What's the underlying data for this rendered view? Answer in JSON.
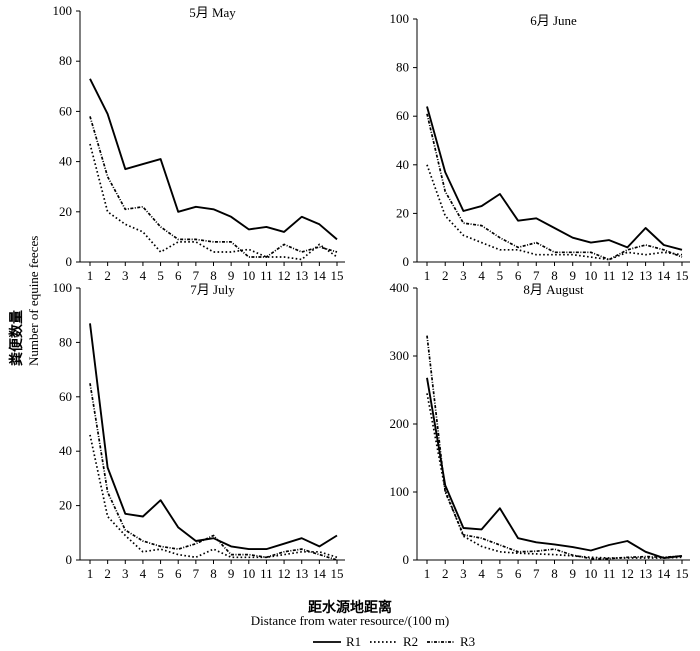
{
  "figure": {
    "ylabel_cn": "粪便数量",
    "ylabel_en": "Number of equine feeces",
    "xlabel_cn": "距水源地距离",
    "xlabel_en": "Distance from water resource/(100 m)"
  },
  "legend": [
    {
      "name": "R1",
      "style": "solid"
    },
    {
      "name": "R2",
      "style": "dotted"
    },
    {
      "name": "R3",
      "style": "dashdot"
    }
  ],
  "chart_data": [
    {
      "type": "line",
      "title": "5月 May",
      "x": [
        1,
        2,
        3,
        4,
        5,
        6,
        7,
        8,
        9,
        10,
        11,
        12,
        13,
        14,
        15
      ],
      "ylim": [
        0,
        100
      ],
      "yticks": [
        0,
        20,
        40,
        60,
        80,
        100
      ],
      "series": [
        {
          "name": "R1",
          "values": [
            73,
            59,
            37,
            39,
            41,
            20,
            22,
            21,
            18,
            13,
            14,
            12,
            18,
            15,
            9
          ]
        },
        {
          "name": "R2",
          "values": [
            47,
            20,
            15,
            12,
            4,
            8,
            8,
            4,
            4,
            5,
            2,
            2,
            1,
            7,
            2
          ]
        },
        {
          "name": "R3",
          "values": [
            58,
            34,
            21,
            22,
            14,
            9,
            9,
            8,
            8,
            2,
            2,
            7,
            4,
            6,
            4
          ]
        }
      ]
    },
    {
      "type": "line",
      "title": "6月 June",
      "x": [
        1,
        2,
        3,
        4,
        5,
        6,
        7,
        8,
        9,
        10,
        11,
        12,
        13,
        14,
        15
      ],
      "ylim": [
        0,
        100
      ],
      "yticks": [
        0,
        20,
        40,
        60,
        80,
        100
      ],
      "series": [
        {
          "name": "R1",
          "values": [
            64,
            37,
            21,
            23,
            28,
            17,
            18,
            14,
            10,
            8,
            9,
            6,
            14,
            7,
            5
          ]
        },
        {
          "name": "R2",
          "values": [
            40,
            19,
            11,
            8,
            5,
            5,
            3,
            3,
            3,
            2,
            1,
            4,
            3,
            4,
            3
          ]
        },
        {
          "name": "R3",
          "values": [
            61,
            29,
            16,
            15,
            10,
            6,
            8,
            4,
            4,
            4,
            1,
            5,
            7,
            5,
            2
          ]
        }
      ]
    },
    {
      "type": "line",
      "title": "7月 July",
      "x": [
        1,
        2,
        3,
        4,
        5,
        6,
        7,
        8,
        9,
        10,
        11,
        12,
        13,
        14,
        15
      ],
      "ylim": [
        0,
        100
      ],
      "yticks": [
        0,
        20,
        40,
        60,
        80,
        100
      ],
      "series": [
        {
          "name": "R1",
          "values": [
            87,
            34,
            17,
            16,
            22,
            12,
            7,
            8,
            5,
            4,
            4,
            6,
            8,
            5,
            9
          ]
        },
        {
          "name": "R2",
          "values": [
            46,
            16,
            9,
            3,
            4,
            2,
            1,
            4,
            1,
            1,
            1,
            2,
            3,
            3,
            1
          ]
        },
        {
          "name": "R3",
          "values": [
            65,
            25,
            11,
            7,
            5,
            4,
            6,
            9,
            2,
            2,
            1,
            3,
            4,
            2,
            0
          ]
        }
      ]
    },
    {
      "type": "line",
      "title": "8月 August",
      "x": [
        1,
        2,
        3,
        4,
        5,
        6,
        7,
        8,
        9,
        10,
        11,
        12,
        13,
        14,
        15
      ],
      "ylim": [
        0,
        400
      ],
      "yticks": [
        0,
        100,
        200,
        300,
        400
      ],
      "series": [
        {
          "name": "R1",
          "values": [
            268,
            110,
            47,
            45,
            76,
            32,
            26,
            23,
            19,
            14,
            22,
            28,
            12,
            3,
            6
          ]
        },
        {
          "name": "R2",
          "values": [
            245,
            103,
            35,
            20,
            12,
            10,
            9,
            8,
            6,
            4,
            3,
            3,
            3,
            3,
            4
          ]
        },
        {
          "name": "R3",
          "values": [
            330,
            100,
            37,
            32,
            22,
            12,
            13,
            16,
            7,
            2,
            2,
            4,
            5,
            4,
            6
          ]
        }
      ]
    }
  ]
}
